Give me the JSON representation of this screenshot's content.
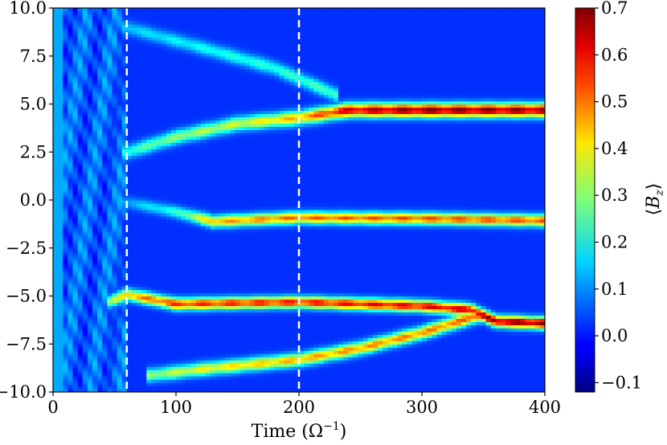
{
  "chart_data": {
    "type": "heatmap",
    "title": "",
    "xlabel": "Time (Ω",
    "xlabel_sup": "−1",
    "xlabel_close": ")",
    "ylabel": "",
    "xlim": [
      0,
      400
    ],
    "ylim": [
      -10,
      10
    ],
    "x_ticks": [
      0,
      100,
      200,
      300,
      400
    ],
    "x_tick_labels": [
      "0",
      "100",
      "200",
      "300",
      "400"
    ],
    "y_ticks": [
      10,
      7.5,
      5,
      2.5,
      0,
      -2.5,
      -5,
      -7.5,
      -10
    ],
    "y_tick_labels": [
      "10.0",
      "7.5",
      "5.0",
      "2.5",
      "0.0",
      "−2.5",
      "−5.0",
      "−7.5",
      "−10.0"
    ],
    "vertical_dashed_lines_x": [
      60,
      200
    ],
    "colormap": "jet",
    "background_value": 0.02,
    "colorbar": {
      "label": "⟨B_z⟩",
      "range": [
        -0.12,
        0.7
      ],
      "ticks": [
        0.7,
        0.6,
        0.5,
        0.4,
        0.3,
        0.2,
        0.1,
        0.0,
        -0.1
      ],
      "tick_labels": [
        "0.7",
        "0.6",
        "0.5",
        "0.4",
        "0.3",
        "0.2",
        "0.1",
        "0.0",
        "−0.1"
      ]
    },
    "bands": [
      {
        "t": [
          60,
          130,
          180,
          230
        ],
        "y": [
          9.0,
          7.8,
          6.9,
          5.5
        ],
        "value": [
          0.15,
          0.2,
          0.22,
          0.25
        ],
        "width": 0.35
      },
      {
        "t": [
          60,
          100,
          150,
          200,
          240,
          300,
          400
        ],
        "y": [
          2.5,
          3.3,
          4.0,
          4.3,
          4.7,
          4.7,
          4.7
        ],
        "value": [
          0.22,
          0.3,
          0.35,
          0.45,
          0.62,
          0.68,
          0.66
        ],
        "width": 0.35
      },
      {
        "t": [
          60,
          100,
          130,
          200,
          300,
          400
        ],
        "y": [
          -0.1,
          -0.6,
          -1.1,
          -0.9,
          -0.95,
          -1.05
        ],
        "value": [
          0.12,
          0.22,
          0.45,
          0.5,
          0.52,
          0.52
        ],
        "width": 0.3
      },
      {
        "t": [
          45,
          60,
          100,
          200,
          300,
          340,
          360,
          400
        ],
        "y": [
          -5.3,
          -4.9,
          -5.4,
          -5.3,
          -5.5,
          -5.7,
          -6.3,
          -6.4
        ],
        "value": [
          0.3,
          0.45,
          0.55,
          0.57,
          0.6,
          0.62,
          0.66,
          0.68
        ],
        "width": 0.3
      },
      {
        "t": [
          80,
          120,
          200,
          250,
          300,
          330,
          345
        ],
        "y": [
          -9.1,
          -8.8,
          -8.3,
          -7.7,
          -6.9,
          -6.3,
          -6.0
        ],
        "value": [
          0.3,
          0.38,
          0.45,
          0.47,
          0.48,
          0.5,
          0.55
        ],
        "width": 0.33
      }
    ]
  }
}
